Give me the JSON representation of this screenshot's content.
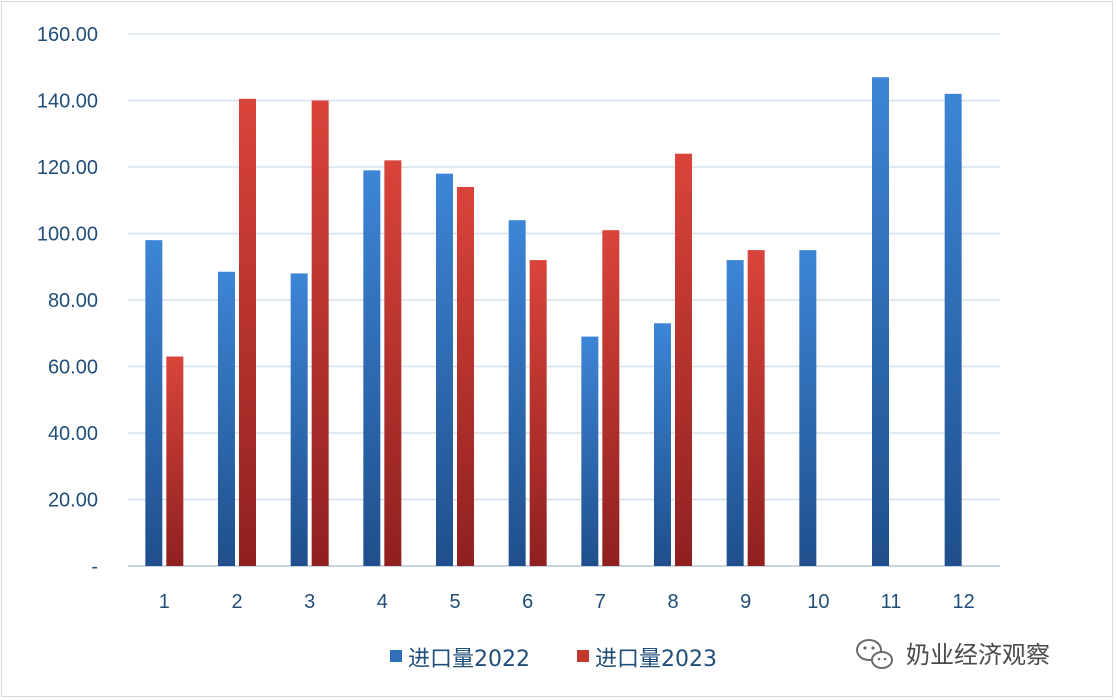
{
  "chart_data": {
    "type": "bar",
    "title": "",
    "xlabel": "",
    "ylabel": "",
    "categories": [
      "1",
      "2",
      "3",
      "4",
      "5",
      "6",
      "7",
      "8",
      "9",
      "10",
      "11",
      "12"
    ],
    "series": [
      {
        "name": "进口量2022",
        "values": [
          98,
          88.5,
          88,
          119,
          118,
          104,
          69,
          73,
          92,
          95,
          147,
          142
        ],
        "color": "#2e6fb8"
      },
      {
        "name": "进口量2023",
        "values": [
          63,
          140.5,
          140,
          122,
          114,
          92,
          101,
          124,
          95,
          null,
          null,
          null
        ],
        "color": "#c0392b"
      }
    ],
    "ylim": [
      0,
      160
    ],
    "y_ticks": [
      "-",
      "20.00",
      "40.00",
      "60.00",
      "80.00",
      "100.00",
      "120.00",
      "140.00",
      "160.00"
    ],
    "grid": true,
    "legend_position": "bottom"
  },
  "watermark": {
    "text": "奶业经济观察",
    "icon": "wechat-icon"
  }
}
